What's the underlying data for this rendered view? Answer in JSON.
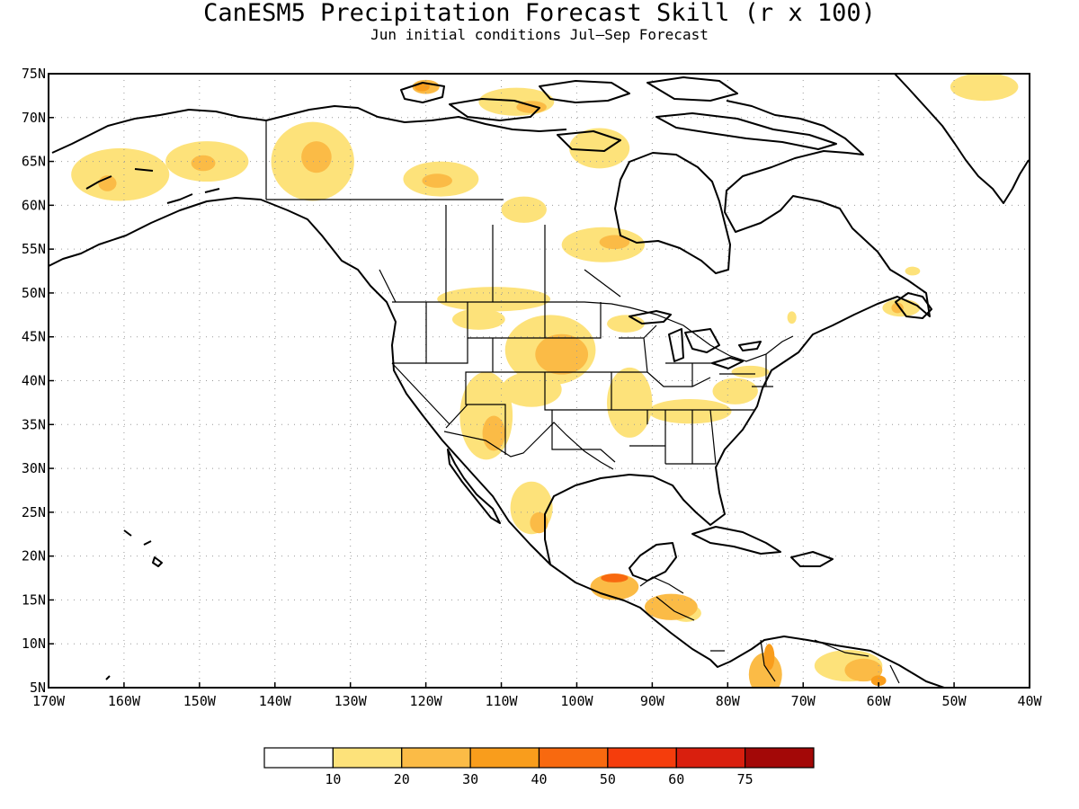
{
  "title": "CanESM5 Precipitation Forecast Skill (r x 100)",
  "subtitle": "Jun initial conditions  Jul—Sep Forecast",
  "map": {
    "lon_range": [
      -170,
      -40
    ],
    "lat_range": [
      5,
      75
    ],
    "gridlines": "dotted",
    "lat_labels": [
      "5N",
      "10N",
      "15N",
      "20N",
      "25N",
      "30N",
      "35N",
      "40N",
      "45N",
      "50N",
      "55N",
      "60N",
      "65N",
      "70N",
      "75N"
    ],
    "lon_labels": [
      "170W",
      "160W",
      "150W",
      "140W",
      "130W",
      "120W",
      "110W",
      "100W",
      "90W",
      "80W",
      "70W",
      "60W",
      "50W",
      "40W"
    ]
  },
  "colorbar": {
    "colors": [
      "#ffffff",
      "#fde27a",
      "#fbbb46",
      "#f99d1c",
      "#f8690f",
      "#f53d0c",
      "#d91f0e",
      "#a30807"
    ],
    "labels": [
      "10",
      "20",
      "30",
      "40",
      "50",
      "60",
      "75"
    ]
  },
  "regions": [
    {
      "name": "Alaska west",
      "level": 1,
      "lon": -160.5,
      "lat": 63.5,
      "rx": 6.5,
      "ry": 3.0
    },
    {
      "name": "Alaska central",
      "level": 1,
      "lon": -149,
      "lat": 65,
      "rx": 5.5,
      "ry": 2.3
    },
    {
      "name": "Alaska central core",
      "level": 2,
      "lon": -149.5,
      "lat": 64.8,
      "rx": 1.6,
      "ry": 0.9
    },
    {
      "name": "Alaska west core",
      "level": 2,
      "lon": -162.2,
      "lat": 62.5,
      "rx": 1.2,
      "ry": 0.9
    },
    {
      "name": "Yukon",
      "level": 1,
      "lon": -135,
      "lat": 65,
      "rx": 5.5,
      "ry": 4.5
    },
    {
      "name": "Yukon core",
      "level": 2,
      "lon": -134.5,
      "lat": 65.5,
      "rx": 2.0,
      "ry": 1.8
    },
    {
      "name": "Banks Island",
      "level": 2,
      "lon": -120,
      "lat": 73.5,
      "rx": 1.8,
      "ry": 0.8
    },
    {
      "name": "Banks Island core",
      "level": 3,
      "lon": -120.5,
      "lat": 73.5,
      "rx": 1.0,
      "ry": 0.5
    },
    {
      "name": "Victoria Island",
      "level": 1,
      "lon": -108,
      "lat": 71.8,
      "rx": 5.0,
      "ry": 1.6
    },
    {
      "name": "Victoria Island core",
      "level": 2,
      "lon": -106,
      "lat": 71.2,
      "rx": 2.0,
      "ry": 0.7
    },
    {
      "name": "Kent Peninsula",
      "level": 1,
      "lon": -97,
      "lat": 66.5,
      "rx": 4.0,
      "ry": 2.3
    },
    {
      "name": "Great Bear Lake",
      "level": 1,
      "lon": -118,
      "lat": 63,
      "rx": 5.0,
      "ry": 2.0
    },
    {
      "name": "Great Bear Lake core",
      "level": 2,
      "lon": -118.5,
      "lat": 62.8,
      "rx": 2.0,
      "ry": 0.8
    },
    {
      "name": "NWT south",
      "level": 1,
      "lon": -107,
      "lat": 59.5,
      "rx": 3.0,
      "ry": 1.5
    },
    {
      "name": "Manitoba north",
      "level": 1,
      "lon": -96.5,
      "lat": 55.5,
      "rx": 5.5,
      "ry": 2.0
    },
    {
      "name": "Manitoba core",
      "level": 2,
      "lon": -95,
      "lat": 55.8,
      "rx": 2.0,
      "ry": 0.8
    },
    {
      "name": "Prairies",
      "level": 1,
      "lon": -111,
      "lat": 49.3,
      "rx": 7.5,
      "ry": 1.4
    },
    {
      "name": "Montana",
      "level": 1,
      "lon": -113,
      "lat": 47,
      "rx": 3.5,
      "ry": 1.2
    },
    {
      "name": "Ontario west",
      "level": 1,
      "lon": -93.5,
      "lat": 46.5,
      "rx": 2.5,
      "ry": 1.0
    },
    {
      "name": "Nebraska-South Dakota",
      "level": 1,
      "lon": -103.5,
      "lat": 43.5,
      "rx": 6.0,
      "ry": 4.0
    },
    {
      "name": "Nebraska core",
      "level": 2,
      "lon": -102,
      "lat": 43,
      "rx": 3.5,
      "ry": 2.3
    },
    {
      "name": "Colorado",
      "level": 1,
      "lon": -106,
      "lat": 39,
      "rx": 4.0,
      "ry": 2.0
    },
    {
      "name": "Utah-Arizona",
      "level": 1,
      "lon": -112,
      "lat": 36,
      "rx": 3.5,
      "ry": 5.0
    },
    {
      "name": "Arizona core",
      "level": 2,
      "lon": -111,
      "lat": 34,
      "rx": 1.5,
      "ry": 2.0
    },
    {
      "name": "Missouri-Arkansas",
      "level": 1,
      "lon": -93,
      "lat": 37.5,
      "rx": 3.0,
      "ry": 4.0
    },
    {
      "name": "Tennessee Valley",
      "level": 1,
      "lon": -85,
      "lat": 36.5,
      "rx": 5.5,
      "ry": 1.4
    },
    {
      "name": "Virginia",
      "level": 1,
      "lon": -79,
      "lat": 38.8,
      "rx": 3.0,
      "ry": 1.5
    },
    {
      "name": "Pennsylvania",
      "level": 1,
      "lon": -77,
      "lat": 41,
      "rx": 2.5,
      "ry": 0.7
    },
    {
      "name": "Newfoundland",
      "level": 1,
      "lon": -57,
      "lat": 48.3,
      "rx": 2.5,
      "ry": 1.0
    },
    {
      "name": "Newfoundland core",
      "level": 2,
      "lon": -57.5,
      "lat": 48.3,
      "rx": 0.8,
      "ry": 0.6
    },
    {
      "name": "Labrador",
      "level": 1,
      "lon": -55.5,
      "lat": 52.5,
      "rx": 1.0,
      "ry": 0.5
    },
    {
      "name": "Quebec east",
      "level": 1,
      "lon": -71.5,
      "lat": 47.2,
      "rx": 0.6,
      "ry": 0.7
    },
    {
      "name": "Greenland northeast",
      "level": 1,
      "lon": -46,
      "lat": 73.5,
      "rx": 4.5,
      "ry": 1.6
    },
    {
      "name": "Baja",
      "level": 1,
      "lon": -106,
      "lat": 25.5,
      "rx": 2.8,
      "ry": 3.0
    },
    {
      "name": "Baja core",
      "level": 2,
      "lon": -105,
      "lat": 23.8,
      "rx": 1.2,
      "ry": 1.2
    },
    {
      "name": "Mexico south",
      "level": 2,
      "lon": -95,
      "lat": 16.5,
      "rx": 3.2,
      "ry": 1.5
    },
    {
      "name": "Mexico south core",
      "level": 4,
      "lon": -95,
      "lat": 17.5,
      "rx": 1.8,
      "ry": 0.5
    },
    {
      "name": "Central America",
      "level": 2,
      "lon": -87.5,
      "lat": 14.2,
      "rx": 3.5,
      "ry": 1.5
    },
    {
      "name": "Honduras",
      "level": 1,
      "lon": -85.5,
      "lat": 13.5,
      "rx": 2.0,
      "ry": 1.0
    },
    {
      "name": "Colombia",
      "level": 2,
      "lon": -75,
      "lat": 6.5,
      "rx": 2.2,
      "ry": 2.5
    },
    {
      "name": "Colombia core",
      "level": 3,
      "lon": -74.5,
      "lat": 8.5,
      "rx": 0.7,
      "ry": 1.5
    },
    {
      "name": "Venezuela",
      "level": 1,
      "lon": -64,
      "lat": 7.5,
      "rx": 4.5,
      "ry": 1.8
    },
    {
      "name": "Venezuela east",
      "level": 2,
      "lon": -62,
      "lat": 7,
      "rx": 2.5,
      "ry": 1.3
    },
    {
      "name": "Venezuela east core",
      "level": 3,
      "lon": -60,
      "lat": 5.8,
      "rx": 1.0,
      "ry": 0.6
    }
  ]
}
